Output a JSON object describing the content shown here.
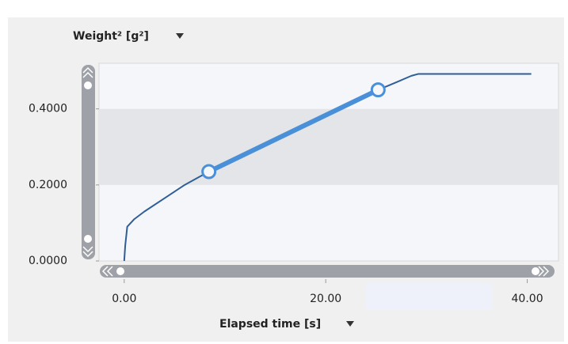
{
  "chart_data": {
    "type": "line",
    "y_label": "Weight² [g²]",
    "x_label": "Elapsed time [s]",
    "xlim": [
      -2.5,
      43.1
    ],
    "ylim": [
      0,
      0.52
    ],
    "xticks": [
      {
        "value": 0,
        "label": "0.00"
      },
      {
        "value": 20,
        "label": "20.00"
      },
      {
        "value": 40,
        "label": "40.00"
      }
    ],
    "yticks": [
      {
        "value": 0,
        "label": "0.0000"
      },
      {
        "value": 0.2,
        "label": "0.2000"
      },
      {
        "value": 0.4,
        "label": "0.4000"
      }
    ],
    "band": [
      0.2,
      0.4
    ],
    "series": [
      {
        "color": "#2f5f96",
        "x": [
          0,
          0.1,
          0.3,
          1,
          2,
          4,
          6,
          8.4,
          12,
          16,
          20,
          25.2,
          27,
          28.5,
          29.2,
          32,
          36,
          40.4
        ],
        "values": [
          0,
          0.04,
          0.09,
          0.11,
          0.13,
          0.165,
          0.2,
          0.235,
          0.282,
          0.333,
          0.383,
          0.45,
          0.47,
          0.487,
          0.492,
          0.492,
          0.492,
          0.492
        ]
      },
      {
        "color": "#4a90d9",
        "x": [
          8.4,
          25.2
        ],
        "values": [
          0.235,
          0.45
        ],
        "markers": true
      }
    ]
  }
}
